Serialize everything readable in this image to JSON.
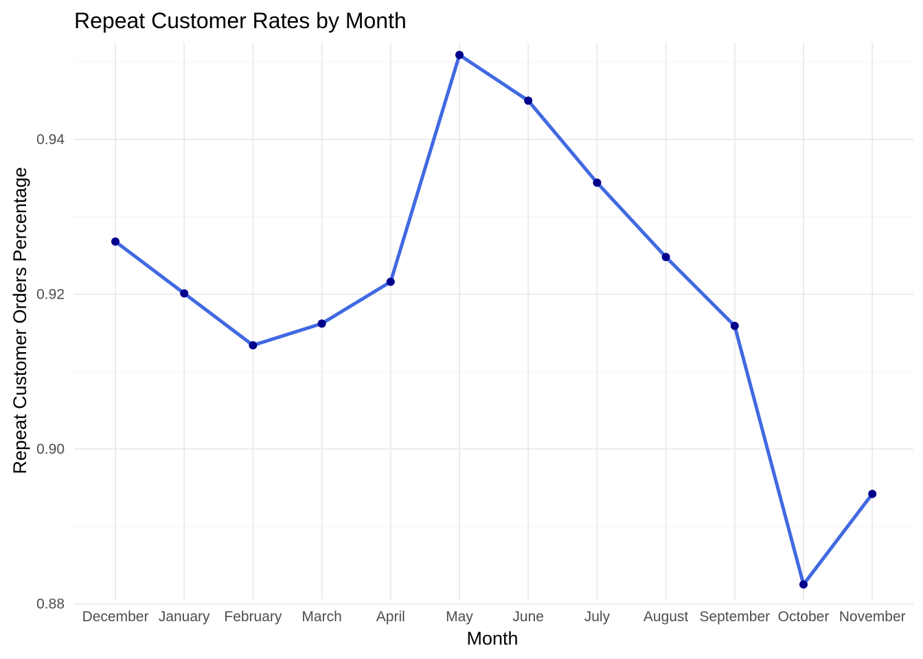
{
  "chart_data": {
    "type": "line",
    "title": "Repeat Customer Rates by Month",
    "xlabel": "Month",
    "ylabel": "Repeat Customer Orders Percentage",
    "categories": [
      "December",
      "January",
      "February",
      "March",
      "April",
      "May",
      "June",
      "July",
      "August",
      "September",
      "October",
      "November"
    ],
    "series": [
      {
        "values": [
          0.9268,
          0.9201,
          0.9134,
          0.9162,
          0.9216,
          0.9509,
          0.945,
          0.9344,
          0.9248,
          0.9159,
          0.8825,
          0.8942
        ]
      }
    ],
    "ylim": [
      0.8805,
      0.9525
    ],
    "yticks": [
      0.88,
      0.9,
      0.92,
      0.94
    ],
    "ytick_labels": [
      "0.88",
      "0.90",
      "0.92",
      "0.94"
    ],
    "grid": true,
    "legend": "none",
    "colors": {
      "line": "#4169E1",
      "points": "#00008B",
      "grid": "#ebebeb"
    }
  }
}
